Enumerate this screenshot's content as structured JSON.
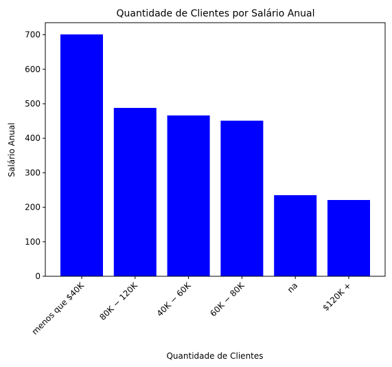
{
  "chart_data": {
    "type": "bar",
    "title": "Quantidade de Clientes por Salário Anual",
    "xlabel": "Quantidade de Clientes",
    "ylabel": "Salário Anual",
    "categories": [
      "menos que $40K",
      "$80K - $120K",
      "$40K - $60K",
      "$60K - $80K",
      "na",
      "$120K +"
    ],
    "category_display": [
      "menos que $40K",
      "80K − 120K",
      "40K − 60K",
      "60K − 80K",
      "na",
      "$120K +"
    ],
    "values": [
      701,
      488,
      466,
      451,
      235,
      221
    ],
    "ylim": [
      0,
      735
    ],
    "yticks": [
      0,
      100,
      200,
      300,
      400,
      500,
      600,
      700
    ],
    "bar_color": "#0000ff",
    "grid": false
  }
}
